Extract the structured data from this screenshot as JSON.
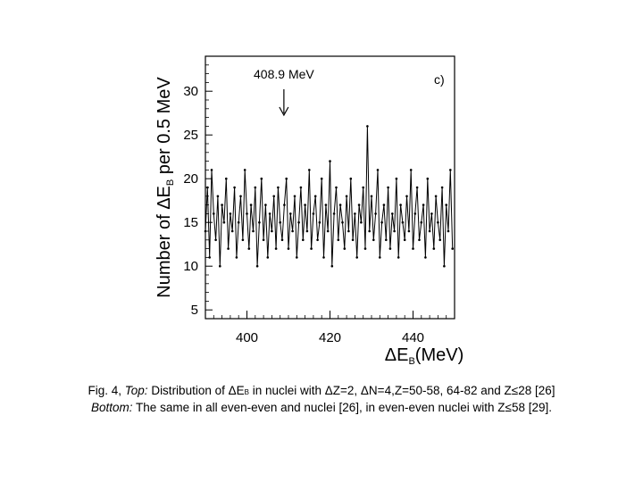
{
  "chart_data": {
    "type": "line",
    "panel_label": "c)",
    "ylabel_main": "Number of ΔE",
    "ylabel_sub": "B",
    "ylabel_rest": " per 0.5 MeV",
    "xlabel_main": "ΔE",
    "xlabel_sub": "B",
    "xlabel_rest": "(MeV)",
    "xlim": [
      390,
      450
    ],
    "ylim": [
      4,
      34
    ],
    "xticks": [
      400,
      420,
      440
    ],
    "yticks": [
      5,
      10,
      15,
      20,
      25,
      30
    ],
    "annotation": {
      "text": "408.9 MeV",
      "x": 408.9
    },
    "series": [
      {
        "x_start": 390.0,
        "x_step": 0.5,
        "values": [
          14,
          19,
          11,
          21,
          16,
          13,
          18,
          10,
          17,
          15,
          20,
          12,
          16,
          14,
          19,
          11,
          15,
          18,
          13,
          21,
          16,
          12,
          17,
          14,
          19,
          10,
          15,
          20,
          13,
          17,
          11,
          16,
          14,
          18,
          12,
          19,
          15,
          13,
          17,
          20,
          12,
          16,
          14,
          18,
          11,
          15,
          19,
          13,
          17,
          14,
          21,
          12,
          16,
          18,
          13,
          15,
          20,
          11,
          17,
          14,
          22,
          10,
          16,
          19,
          13,
          17,
          15,
          12,
          18,
          14,
          20,
          13,
          16,
          11,
          17,
          15,
          19,
          12,
          26,
          14,
          18,
          13,
          16,
          21,
          11,
          15,
          17,
          13,
          19,
          12,
          16,
          14,
          20,
          11,
          17,
          15,
          13,
          18,
          14,
          21,
          12,
          16,
          19,
          13,
          15,
          17,
          11,
          20,
          14,
          16,
          12,
          18,
          15,
          13,
          19,
          10,
          17,
          14,
          21,
          12
        ]
      }
    ]
  },
  "caption": {
    "line1_fig": "Fig. 4, ",
    "line1_top": "Top:",
    "line1_a": " Distribution of ΔE",
    "line1_sub": "B",
    "line1_b": "  in nuclei with ΔZ=2, ΔN=4,Z=50-58, 64-82 and Z≤28 [26]",
    "line2_bottom": "Bottom:",
    "line2_rest": " The same in all even-even and nuclei [26], in even-even nuclei with Z≤58 [29]."
  }
}
